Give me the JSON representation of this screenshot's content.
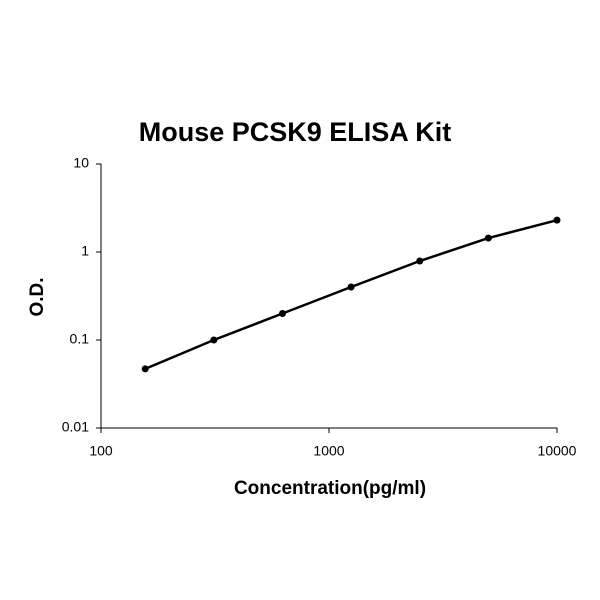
{
  "chart_data": {
    "type": "line",
    "title": "Mouse PCSK9 ELISA Kit",
    "x_label": "Concentration(pg/ml)",
    "y_label": "O.D.",
    "x": [
      156.25,
      312.5,
      625,
      1250,
      2500,
      5000,
      10000
    ],
    "values": [
      0.047,
      0.1,
      0.2,
      0.4,
      0.79,
      1.44,
      2.3
    ],
    "color": "#000000",
    "xlim": [
      100,
      10000
    ],
    "xticks": [
      100,
      1000,
      10000
    ],
    "ylim": [
      0.01,
      10
    ],
    "yticks": [
      0.01,
      0.1,
      1,
      10
    ],
    "xscale": "log",
    "yscale": "log",
    "grid": false,
    "markers": true
  }
}
